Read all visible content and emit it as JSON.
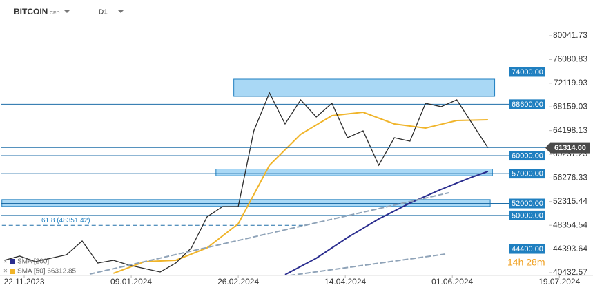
{
  "header": {
    "symbol": "BITCOIN",
    "kind": "CFD",
    "timeframe": "D1"
  },
  "chart_data": {
    "type": "line",
    "x": [
      "13.11.2023",
      "20.11.2023",
      "27.11.2023",
      "04.12.2023",
      "11.12.2023",
      "18.12.2023",
      "25.12.2023",
      "01.01.2024",
      "08.01.2024",
      "15.01.2024",
      "22.01.2024",
      "29.01.2024",
      "05.02.2024",
      "12.02.2024",
      "19.02.2024",
      "26.02.2024",
      "04.03.2024",
      "11.03.2024",
      "18.03.2024",
      "25.03.2024",
      "01.04.2024",
      "08.04.2024",
      "15.04.2024",
      "22.04.2024",
      "29.04.2024",
      "06.05.2024",
      "13.05.2024",
      "20.05.2024",
      "27.05.2024",
      "03.06.2024",
      "10.06.2024",
      "17.06.2024"
    ],
    "values": [
      42505,
      43196,
      42275,
      42850,
      43426,
      45729,
      42045,
      42505,
      41699,
      41124,
      40548,
      42045,
      44578,
      49760,
      51487,
      51487,
      64152,
      70485,
      65304,
      69333,
      66455,
      68758,
      62999,
      64152,
      58394,
      62999,
      62425,
      68758,
      68182,
      69333,
      65304,
      61314
    ],
    "color": "#2b2b2b",
    "series": [
      {
        "name": "SMA [200]",
        "color": "#2a2d8f",
        "x": [
          "18.03.2024",
          "01.04.2024",
          "15.04.2024",
          "29.04.2024",
          "13.05.2024",
          "27.05.2024",
          "10.06.2024",
          "17.06.2024"
        ],
        "values": [
          40100,
          42850,
          46304,
          49413,
          52065,
          54365,
          56437,
          57359
        ]
      },
      {
        "name": "SMA [50] 66312.85",
        "color": "#f0b429",
        "x": [
          "01.01.2024",
          "15.01.2024",
          "29.01.2024",
          "12.02.2024",
          "26.02.2024",
          "11.03.2024",
          "25.03.2024",
          "08.04.2024",
          "22.04.2024",
          "06.05.2024",
          "20.05.2024",
          "03.06.2024",
          "17.06.2024"
        ],
        "values": [
          40318,
          42275,
          42505,
          44578,
          48608,
          58394,
          63575,
          66685,
          67260,
          65304,
          64613,
          65880,
          65995
        ]
      }
    ],
    "levels": [
      {
        "value": 74000,
        "label": "74000.00"
      },
      {
        "value": 68600,
        "label": "68600.00"
      },
      {
        "value": 60000,
        "label": "60000.00"
      },
      {
        "value": 57000,
        "label": "57000.00"
      },
      {
        "value": 52000,
        "label": "52000.00"
      },
      {
        "value": 50000,
        "label": "50000.00"
      },
      {
        "value": 44400,
        "label": "44400.00"
      }
    ],
    "zones": [
      {
        "low": 69910,
        "high": 72788,
        "start": "24.02.2024",
        "end": "20.06.2024"
      },
      {
        "low": 56640,
        "high": 57760,
        "start": "16.02.2024",
        "end": "19.06.2024"
      },
      {
        "low": 51502,
        "high": 52654,
        "start": "12.11.2023",
        "end": "18.06.2024"
      }
    ],
    "fib": {
      "value": 48351.42,
      "label": "61.8 (48351.42)",
      "start": "12.11.2023",
      "end": "28.03.2024"
    },
    "last_price": {
      "value": 61314,
      "label": "61314.00"
    },
    "timer": "14h 28m",
    "ylim": [
      39970,
      86030
    ],
    "yticks": [
      80041.73,
      76080.83,
      72119.93,
      68159.03,
      64198.13,
      60237.23,
      56276.33,
      52315.44,
      48354.54,
      44393.64,
      40432.57
    ],
    "xlim": [
      "11.11.2023",
      "31.07.2024"
    ],
    "xticks": [
      "22.11.2023",
      "09.01.2024",
      "26.02.2024",
      "14.04.2024",
      "01.06.2024",
      "19.07.2024"
    ]
  }
}
